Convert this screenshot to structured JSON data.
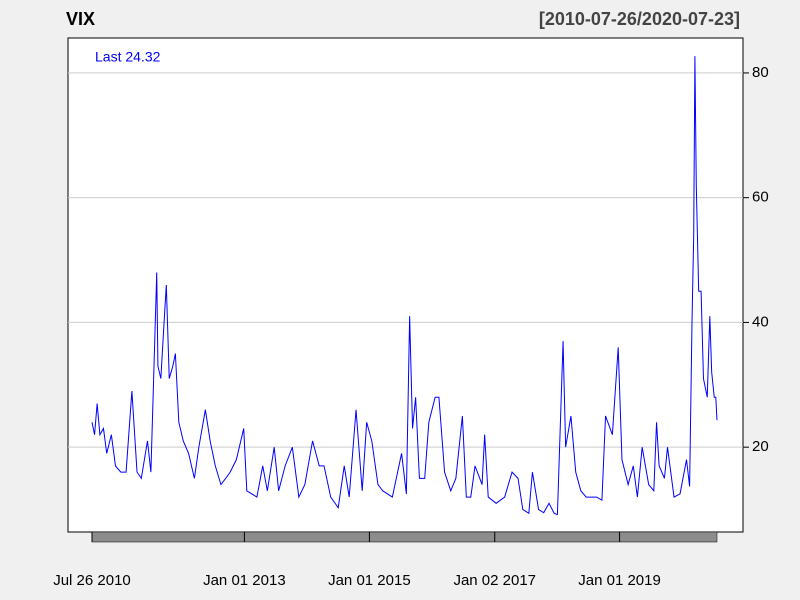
{
  "chart_data": {
    "type": "line",
    "title": "VIX",
    "subtitle": "[2010-07-26/2020-07-23]",
    "annotation": "Last 24.32",
    "color": "#0000ff",
    "x": [
      "2010-07-26",
      "2010-08-10",
      "2010-08-25",
      "2010-09-10",
      "2010-10-01",
      "2010-10-20",
      "2010-11-16",
      "2010-12-10",
      "2011-01-10",
      "2011-02-10",
      "2011-03-16",
      "2011-04-15",
      "2011-05-10",
      "2011-06-15",
      "2011-07-05",
      "2011-08-08",
      "2011-08-15",
      "2011-09-01",
      "2011-09-22",
      "2011-10-03",
      "2011-10-20",
      "2011-11-10",
      "2011-11-25",
      "2011-12-15",
      "2012-01-10",
      "2012-02-10",
      "2012-03-15",
      "2012-04-10",
      "2012-05-18",
      "2012-06-15",
      "2012-07-15",
      "2012-08-17",
      "2012-09-14",
      "2012-10-10",
      "2012-11-15",
      "2012-12-28",
      "2013-01-15",
      "2013-03-15",
      "2013-04-18",
      "2013-05-15",
      "2013-06-24",
      "2013-07-20",
      "2013-08-27",
      "2013-10-08",
      "2013-11-15",
      "2013-12-20",
      "2014-02-03",
      "2014-03-14",
      "2014-04-11",
      "2014-05-20",
      "2014-07-03",
      "2014-08-07",
      "2014-09-05",
      "2014-10-15",
      "2014-11-20",
      "2014-12-16",
      "2015-01-15",
      "2015-02-20",
      "2015-03-20",
      "2015-05-15",
      "2015-07-08",
      "2015-08-05",
      "2015-08-24",
      "2015-09-10",
      "2015-09-28",
      "2015-10-20",
      "2015-11-20",
      "2015-12-14",
      "2016-01-20",
      "2016-02-11",
      "2016-03-15",
      "2016-04-20",
      "2016-05-20",
      "2016-06-27",
      "2016-07-20",
      "2016-08-15",
      "2016-09-09",
      "2016-10-20",
      "2016-11-04",
      "2016-11-25",
      "2017-01-10",
      "2017-03-01",
      "2017-04-13",
      "2017-05-18",
      "2017-06-15",
      "2017-07-20",
      "2017-08-10",
      "2017-09-15",
      "2017-10-15",
      "2017-11-15",
      "2017-12-15",
      "2018-01-03",
      "2018-02-05",
      "2018-02-20",
      "2018-03-23",
      "2018-04-20",
      "2018-05-20",
      "2018-06-20",
      "2018-07-20",
      "2018-08-20",
      "2018-09-20",
      "2018-10-11",
      "2018-11-20",
      "2018-12-24",
      "2019-01-15",
      "2019-02-20",
      "2019-03-22",
      "2019-04-15",
      "2019-05-13",
      "2019-06-20",
      "2019-07-20",
      "2019-08-05",
      "2019-08-20",
      "2019-09-20",
      "2019-10-08",
      "2019-11-15",
      "2019-12-20",
      "2020-01-27",
      "2020-02-14",
      "2020-02-28",
      "2020-03-09",
      "2020-03-16",
      "2020-03-24",
      "2020-04-07",
      "2020-04-21",
      "2020-05-05",
      "2020-05-27",
      "2020-06-11",
      "2020-06-22",
      "2020-07-07",
      "2020-07-16",
      "2020-07-23"
    ],
    "values": [
      24,
      22,
      27,
      22,
      23,
      19,
      22,
      17,
      16,
      16,
      29,
      16,
      15,
      21,
      16,
      48,
      33,
      31,
      41,
      46,
      31,
      33,
      35,
      24,
      21,
      19,
      15,
      20,
      26,
      21,
      17,
      14,
      15,
      16,
      18,
      23,
      13,
      12,
      17,
      13,
      20,
      13,
      17,
      20,
      12,
      14,
      21,
      17,
      17,
      12,
      10.3,
      17,
      12,
      26,
      13,
      24,
      21,
      14,
      13,
      12,
      19,
      12.5,
      41,
      23,
      28,
      15,
      15,
      24,
      28,
      28,
      16,
      13,
      15,
      25,
      12,
      12,
      17,
      14,
      22,
      12,
      11,
      12,
      16,
      15,
      10,
      9.4,
      16,
      10,
      9.5,
      11,
      9.4,
      9.2,
      37,
      20,
      25,
      16,
      13,
      12,
      12,
      12,
      11.5,
      25,
      22,
      36,
      18,
      14,
      17,
      12,
      20,
      14,
      13,
      24,
      17,
      15,
      20,
      12,
      12.5,
      18,
      13.7,
      40,
      54,
      82.7,
      62,
      45,
      45,
      31,
      28,
      41,
      32,
      28,
      28,
      24.32
    ],
    "xlim": [
      "2010-07-26",
      "2020-07-23"
    ],
    "xticks": [
      {
        "value": "2010-07-26",
        "label": "Jul 26 2010"
      },
      {
        "value": "2013-01-01",
        "label": "Jan 01 2013"
      },
      {
        "value": "2015-01-01",
        "label": "Jan 01 2015"
      },
      {
        "value": "2017-01-02",
        "label": "Jan 02 2017"
      },
      {
        "value": "2019-01-01",
        "label": "Jan 01 2019"
      }
    ],
    "ylim": [
      6.4,
      85.6
    ],
    "yticks": [
      20,
      40,
      60,
      80
    ],
    "grid": true
  }
}
